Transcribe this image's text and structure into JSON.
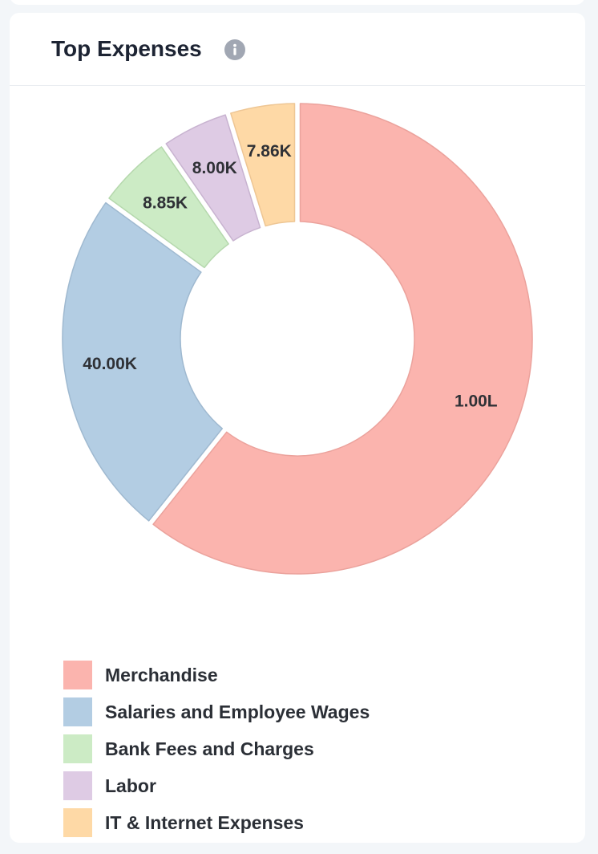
{
  "card": {
    "title": "Top Expenses"
  },
  "icons": {
    "info": "info-icon"
  },
  "chart_data": {
    "type": "pie",
    "variant": "donut",
    "title": "Top Expenses",
    "categories": [
      "Merchandise",
      "Salaries and Employee Wages",
      "Bank Fees and Charges",
      "Labor",
      "IT & Internet Expenses"
    ],
    "values": [
      100000,
      40000,
      8850,
      8000,
      7860
    ],
    "data_labels": [
      "1.00L",
      "40.00K",
      "8.85K",
      "8.00K",
      "7.86K"
    ],
    "colors": [
      "#fbb4ae",
      "#b3cde3",
      "#ccebc5",
      "#decbe4",
      "#fed9a6"
    ],
    "legend_position": "bottom-left"
  }
}
